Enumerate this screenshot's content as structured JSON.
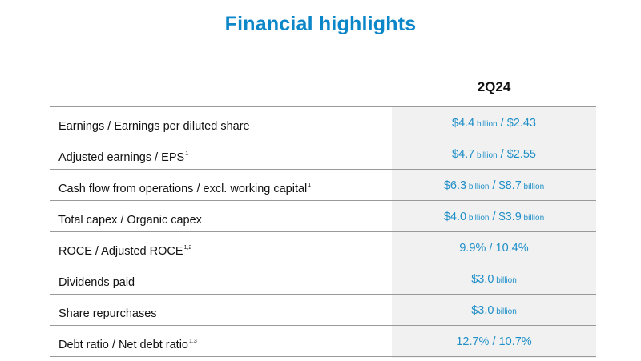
{
  "page": {
    "title": "Financial highlights",
    "column_header": "2Q24"
  },
  "rows": [
    {
      "label": "Earnings / Earnings per diluted share",
      "sup": "",
      "v1": "$4.4",
      "u1": " billion",
      "sep": " / ",
      "v2": "$2.43",
      "u2": ""
    },
    {
      "label": "Adjusted earnings / EPS",
      "sup": "1",
      "v1": "$4.7",
      "u1": " billion",
      "sep": " / ",
      "v2": "$2.55",
      "u2": ""
    },
    {
      "label": "Cash flow from operations / excl. working capital",
      "sup": "1",
      "v1": "$6.3",
      "u1": " billion",
      "sep": " / ",
      "v2": "$8.7",
      "u2": " billion"
    },
    {
      "label": "Total capex / Organic capex",
      "sup": "",
      "v1": "$4.0",
      "u1": " billion",
      "sep": " / ",
      "v2": "$3.9",
      "u2": " billion"
    },
    {
      "label": "ROCE / Adjusted ROCE",
      "sup": "1,2",
      "v1": "9.9%",
      "u1": "",
      "sep": " / ",
      "v2": "10.4%",
      "u2": ""
    },
    {
      "label": "Dividends paid",
      "sup": "",
      "v1": "$3.0",
      "u1": " billion",
      "sep": "",
      "v2": "",
      "u2": ""
    },
    {
      "label": "Share repurchases",
      "sup": "",
      "v1": "$3.0",
      "u1": " billion",
      "sep": "",
      "v2": "",
      "u2": ""
    },
    {
      "label": "Debt ratio / Net debt ratio",
      "sup": "1,3",
      "v1": "12.7%",
      "u1": "",
      "sep": " / ",
      "v2": "10.7%",
      "u2": ""
    }
  ]
}
